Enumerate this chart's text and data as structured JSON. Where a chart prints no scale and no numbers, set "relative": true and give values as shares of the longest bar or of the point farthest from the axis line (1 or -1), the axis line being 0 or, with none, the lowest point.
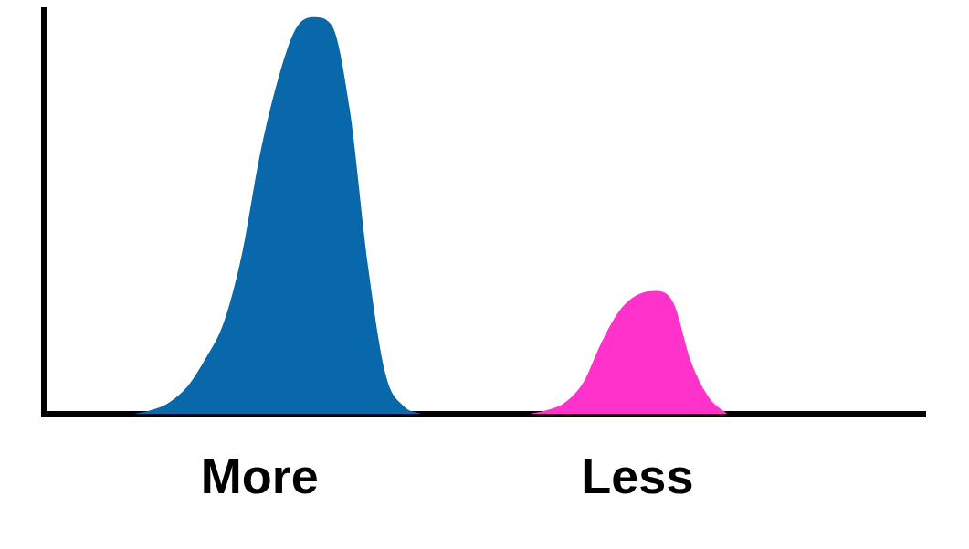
{
  "chart_data": {
    "type": "area",
    "relative": true,
    "grid": false,
    "legend": false,
    "marker": "none",
    "categories": [
      null,
      null,
      null,
      null,
      null,
      null,
      null,
      null,
      null,
      null,
      null,
      null,
      "More",
      null,
      null,
      null,
      null,
      null,
      null,
      null,
      null,
      null,
      null,
      null,
      null,
      null,
      null,
      null,
      null,
      null,
      null,
      null,
      null,
      "Less",
      null,
      null,
      null,
      null,
      null,
      null,
      null,
      null,
      null,
      null,
      null,
      null,
      null,
      null,
      null,
      null
    ],
    "series": [
      {
        "color": "#0868aa",
        "values": [
          null,
          null,
          null,
          null,
          null,
          0,
          0.01,
          0.03,
          0.07,
          0.14,
          0.23,
          0.4,
          0.65,
          0.84,
          0.97,
          1,
          0.98,
          0.77,
          0.38,
          0.1,
          0.02,
          0,
          null,
          null,
          null,
          null,
          null,
          null,
          null,
          null,
          null,
          null,
          null,
          null,
          null,
          null,
          null,
          null,
          null,
          null,
          null,
          null,
          null,
          null,
          null,
          null,
          null,
          null,
          null,
          null
        ]
      },
      {
        "color": "#ff33cc",
        "values": [
          null,
          null,
          null,
          null,
          null,
          null,
          null,
          null,
          null,
          null,
          null,
          null,
          null,
          null,
          null,
          null,
          null,
          null,
          null,
          null,
          null,
          null,
          null,
          null,
          null,
          null,
          null,
          0,
          0.01,
          0.03,
          0.08,
          0.18,
          0.26,
          0.3,
          0.31,
          0.28,
          0.13,
          0.04,
          0,
          null,
          null,
          null,
          null,
          null,
          null,
          null,
          null,
          null,
          null,
          null
        ]
      }
    ]
  }
}
